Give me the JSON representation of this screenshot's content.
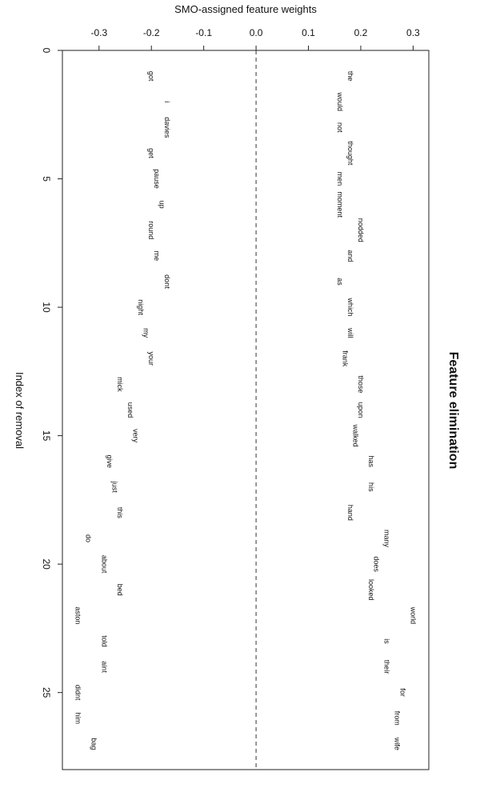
{
  "chart_data": {
    "type": "scatter",
    "title": "Feature elimination",
    "xlabel": "SMO-assigned feature weights",
    "ylabel": "Index of removal",
    "xlim": [
      -0.37,
      0.33
    ],
    "ylim": [
      0,
      28
    ],
    "x_ticks": [
      -0.3,
      -0.2,
      -0.1,
      0.0,
      0.1,
      0.2,
      0.3
    ],
    "x_tick_labels": [
      "-0.3",
      "-0.2",
      "-0.1",
      "0.0",
      "0.1",
      "0.2",
      "0.3"
    ],
    "y_ticks": [
      0,
      5,
      10,
      15,
      20,
      25
    ],
    "y_tick_labels": [
      "0",
      "5",
      "10",
      "15",
      "20",
      "25"
    ],
    "reference_line": {
      "x": 0,
      "style": "dashed"
    },
    "grid": false,
    "labels_rotated": true,
    "points": [
      {
        "word": "the",
        "x": 0.18,
        "y": 1
      },
      {
        "word": "got",
        "x": -0.2,
        "y": 1
      },
      {
        "word": "would",
        "x": 0.16,
        "y": 2
      },
      {
        "word": "i",
        "x": -0.17,
        "y": 2
      },
      {
        "word": "not",
        "x": 0.16,
        "y": 3
      },
      {
        "word": "davies",
        "x": -0.17,
        "y": 3
      },
      {
        "word": "thought",
        "x": 0.18,
        "y": 4
      },
      {
        "word": "get",
        "x": -0.2,
        "y": 4
      },
      {
        "word": "men",
        "x": 0.16,
        "y": 5
      },
      {
        "word": "pause",
        "x": -0.19,
        "y": 5
      },
      {
        "word": "moment",
        "x": 0.16,
        "y": 6
      },
      {
        "word": "up",
        "x": -0.18,
        "y": 6
      },
      {
        "word": "nodded",
        "x": 0.2,
        "y": 7
      },
      {
        "word": "round",
        "x": -0.2,
        "y": 7
      },
      {
        "word": "and",
        "x": 0.18,
        "y": 8
      },
      {
        "word": "me",
        "x": -0.19,
        "y": 8
      },
      {
        "word": "as",
        "x": 0.16,
        "y": 9
      },
      {
        "word": "dont",
        "x": -0.17,
        "y": 9
      },
      {
        "word": "which",
        "x": 0.18,
        "y": 10
      },
      {
        "word": "night",
        "x": -0.22,
        "y": 10
      },
      {
        "word": "will",
        "x": 0.18,
        "y": 11
      },
      {
        "word": "my",
        "x": -0.21,
        "y": 11
      },
      {
        "word": "frank",
        "x": 0.17,
        "y": 12
      },
      {
        "word": "your",
        "x": -0.2,
        "y": 12
      },
      {
        "word": "those",
        "x": 0.2,
        "y": 13
      },
      {
        "word": "mick",
        "x": -0.26,
        "y": 13
      },
      {
        "word": "upon",
        "x": 0.2,
        "y": 14
      },
      {
        "word": "used",
        "x": -0.24,
        "y": 14
      },
      {
        "word": "walked",
        "x": 0.19,
        "y": 15
      },
      {
        "word": "very",
        "x": -0.23,
        "y": 15
      },
      {
        "word": "has",
        "x": 0.22,
        "y": 16
      },
      {
        "word": "give",
        "x": -0.28,
        "y": 16
      },
      {
        "word": "his",
        "x": 0.22,
        "y": 17
      },
      {
        "word": "just",
        "x": -0.27,
        "y": 17
      },
      {
        "word": "hand",
        "x": 0.18,
        "y": 18
      },
      {
        "word": "this",
        "x": -0.26,
        "y": 18
      },
      {
        "word": "many",
        "x": 0.25,
        "y": 19
      },
      {
        "word": "do",
        "x": -0.32,
        "y": 19
      },
      {
        "word": "does",
        "x": 0.23,
        "y": 20
      },
      {
        "word": "about",
        "x": -0.29,
        "y": 20
      },
      {
        "word": "looked",
        "x": 0.22,
        "y": 21
      },
      {
        "word": "bed",
        "x": -0.26,
        "y": 21
      },
      {
        "word": "world",
        "x": 0.3,
        "y": 22
      },
      {
        "word": "aston",
        "x": -0.34,
        "y": 22
      },
      {
        "word": "is",
        "x": 0.25,
        "y": 23
      },
      {
        "word": "told",
        "x": -0.29,
        "y": 23
      },
      {
        "word": "their",
        "x": 0.25,
        "y": 24
      },
      {
        "word": "aint",
        "x": -0.29,
        "y": 24
      },
      {
        "word": "for",
        "x": 0.28,
        "y": 25
      },
      {
        "word": "didnt",
        "x": -0.34,
        "y": 25
      },
      {
        "word": "from",
        "x": 0.27,
        "y": 26
      },
      {
        "word": "him",
        "x": -0.34,
        "y": 26
      },
      {
        "word": "wife",
        "x": 0.27,
        "y": 27
      },
      {
        "word": "bag",
        "x": -0.31,
        "y": 27
      }
    ]
  }
}
